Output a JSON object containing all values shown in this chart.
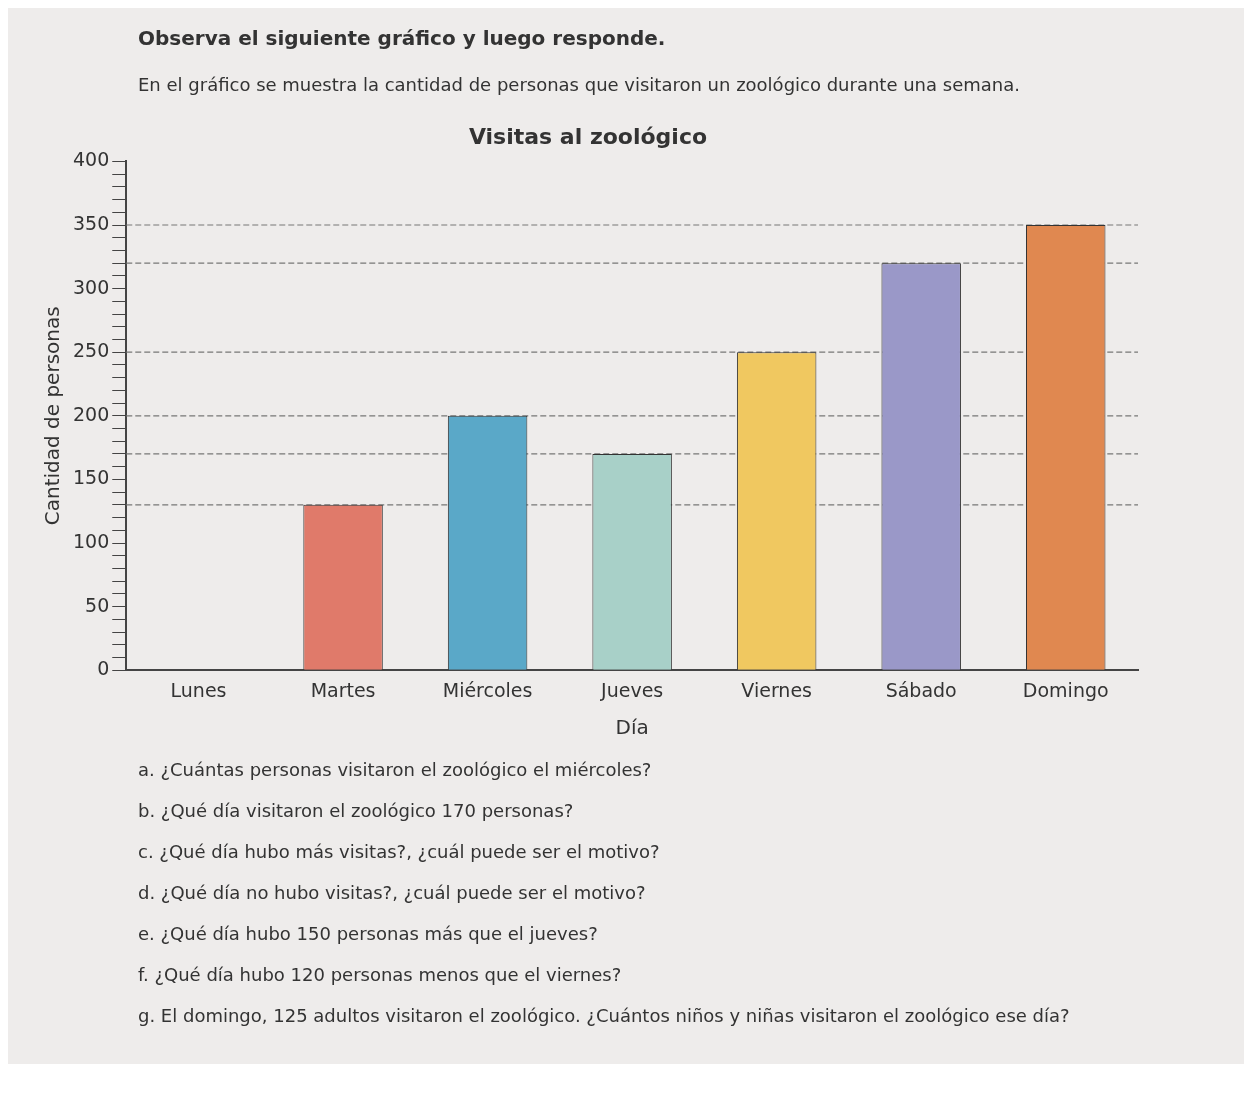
{
  "chart_data": {
    "type": "bar",
    "title": "Visitas al zoológico",
    "subtitle": "En el gráfico se muestra la cantidad de personas que visitaron un zoológico durante una semana.",
    "xlabel": "Día",
    "ylabel": "Cantidad de personas",
    "categories": [
      "Lunes",
      "Martes",
      "Miércoles",
      "Jueves",
      "Viernes",
      "Sábado",
      "Domingo"
    ],
    "values": [
      0,
      130,
      200,
      170,
      250,
      320,
      350
    ],
    "colors": [
      "#888888",
      "#e07a6a",
      "#5aa8c8",
      "#a8d0c8",
      "#f0c860",
      "#9a98c8",
      "#e08850"
    ],
    "ylim": [
      0,
      400
    ],
    "yticks": [
      0,
      {
        "value": 10,
        "label": null
      },
      {
        "value": 20,
        "label": null
      },
      {
        "value": 30,
        "label": null
      },
      {
        "value": 40,
        "label": null
      },
      50,
      {
        "value": 60,
        "label": null
      },
      {
        "value": 70,
        "label": null
      },
      {
        "value": 80,
        "label": null
      },
      {
        "value": 90,
        "label": null
      },
      100,
      {
        "value": 110,
        "label": null
      },
      {
        "value": 120,
        "label": null
      },
      {
        "value": 130,
        "label": null
      },
      {
        "value": 140,
        "label": null
      },
      150,
      {
        "value": 160,
        "label": null
      },
      {
        "value": 170,
        "label": null
      },
      {
        "value": 180,
        "label": null
      },
      {
        "value": 190,
        "label": null
      },
      200,
      {
        "value": 210,
        "label": null
      },
      {
        "value": 220,
        "label": null
      },
      {
        "value": 230,
        "label": null
      },
      {
        "value": 240,
        "label": null
      },
      250,
      {
        "value": 260,
        "label": null
      },
      {
        "value": 270,
        "label": null
      },
      {
        "value": 280,
        "label": null
      },
      {
        "value": 290,
        "label": null
      },
      300,
      {
        "value": 310,
        "label": null
      },
      {
        "value": 320,
        "label": null
      },
      {
        "value": 330,
        "label": null
      },
      {
        "value": 340,
        "label": null
      },
      350,
      {
        "value": 360,
        "label": null
      },
      {
        "value": 370,
        "label": null
      },
      {
        "value": 380,
        "label": null
      },
      {
        "value": 390,
        "label": null
      },
      400
    ],
    "ref_lines": [
      {
        "axis": "y",
        "value": 130,
        "color": "#777777",
        "line_style": "dashed"
      },
      {
        "axis": "y",
        "value": 170,
        "color": "#777777",
        "line_style": "dashed"
      },
      {
        "axis": "y",
        "value": 200,
        "color": "#777777",
        "line_style": "dashed"
      },
      {
        "axis": "y",
        "value": 250,
        "color": "#777777",
        "line_style": "dashed"
      },
      {
        "axis": "y",
        "value": 320,
        "color": "#777777",
        "line_style": "dashed"
      },
      {
        "axis": "y",
        "value": 350,
        "color": "#777777",
        "line_style": "dashed"
      }
    ],
    "grid": false,
    "legend": false,
    "annotations": [
      "Observa el siguiente gráfico y luego responde.",
      "a. ¿Cuántas personas visitaron el zoológico el miércoles?",
      "b. ¿Qué día visitaron el zoológico 170 personas?",
      "c. ¿Qué día hubo más visitas?, ¿cuál puede ser el motivo?",
      "d. ¿Qué día no hubo visitas?, ¿cuál puede ser el motivo?",
      "e. ¿Qué día hubo 150 personas más que el jueves?",
      "f. ¿Qué día hubo 120 personas menos que el viernes?",
      "g. El domingo, 125 adultos visitaron el zoológico. ¿Cuántos niños y niñas visitaron el zoológico ese día?"
    ]
  }
}
